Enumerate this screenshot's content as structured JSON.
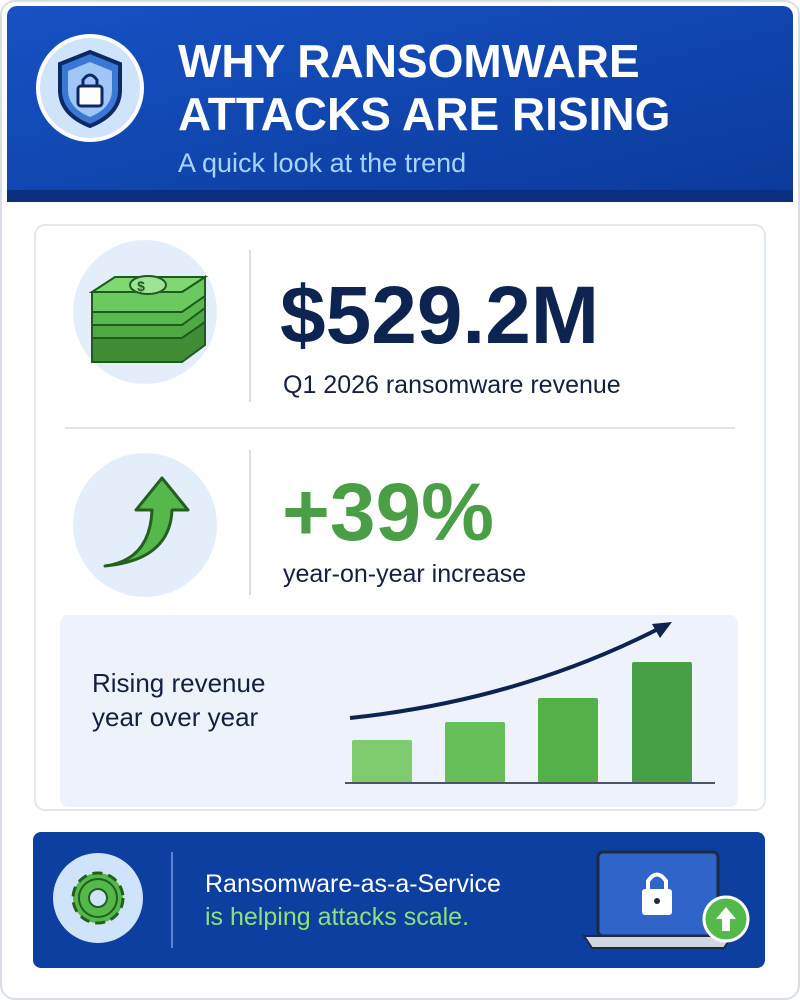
{
  "header": {
    "title_lines": [
      "WHY RANSOMWARE",
      "ATTACKS ARE RISING"
    ],
    "subtitle": "A quick look at the trend"
  },
  "stats": [
    {
      "value": "$529.2M",
      "label": "Q1 2026 ransomware revenue"
    },
    {
      "value": "+39%",
      "label": "year-on-year increase"
    }
  ],
  "trend": {
    "caption_lines": [
      "Rising revenue",
      "year over year"
    ]
  },
  "footer": {
    "line1": "Ransomware-as-a-Service",
    "line2": "is helping attacks scale."
  }
}
